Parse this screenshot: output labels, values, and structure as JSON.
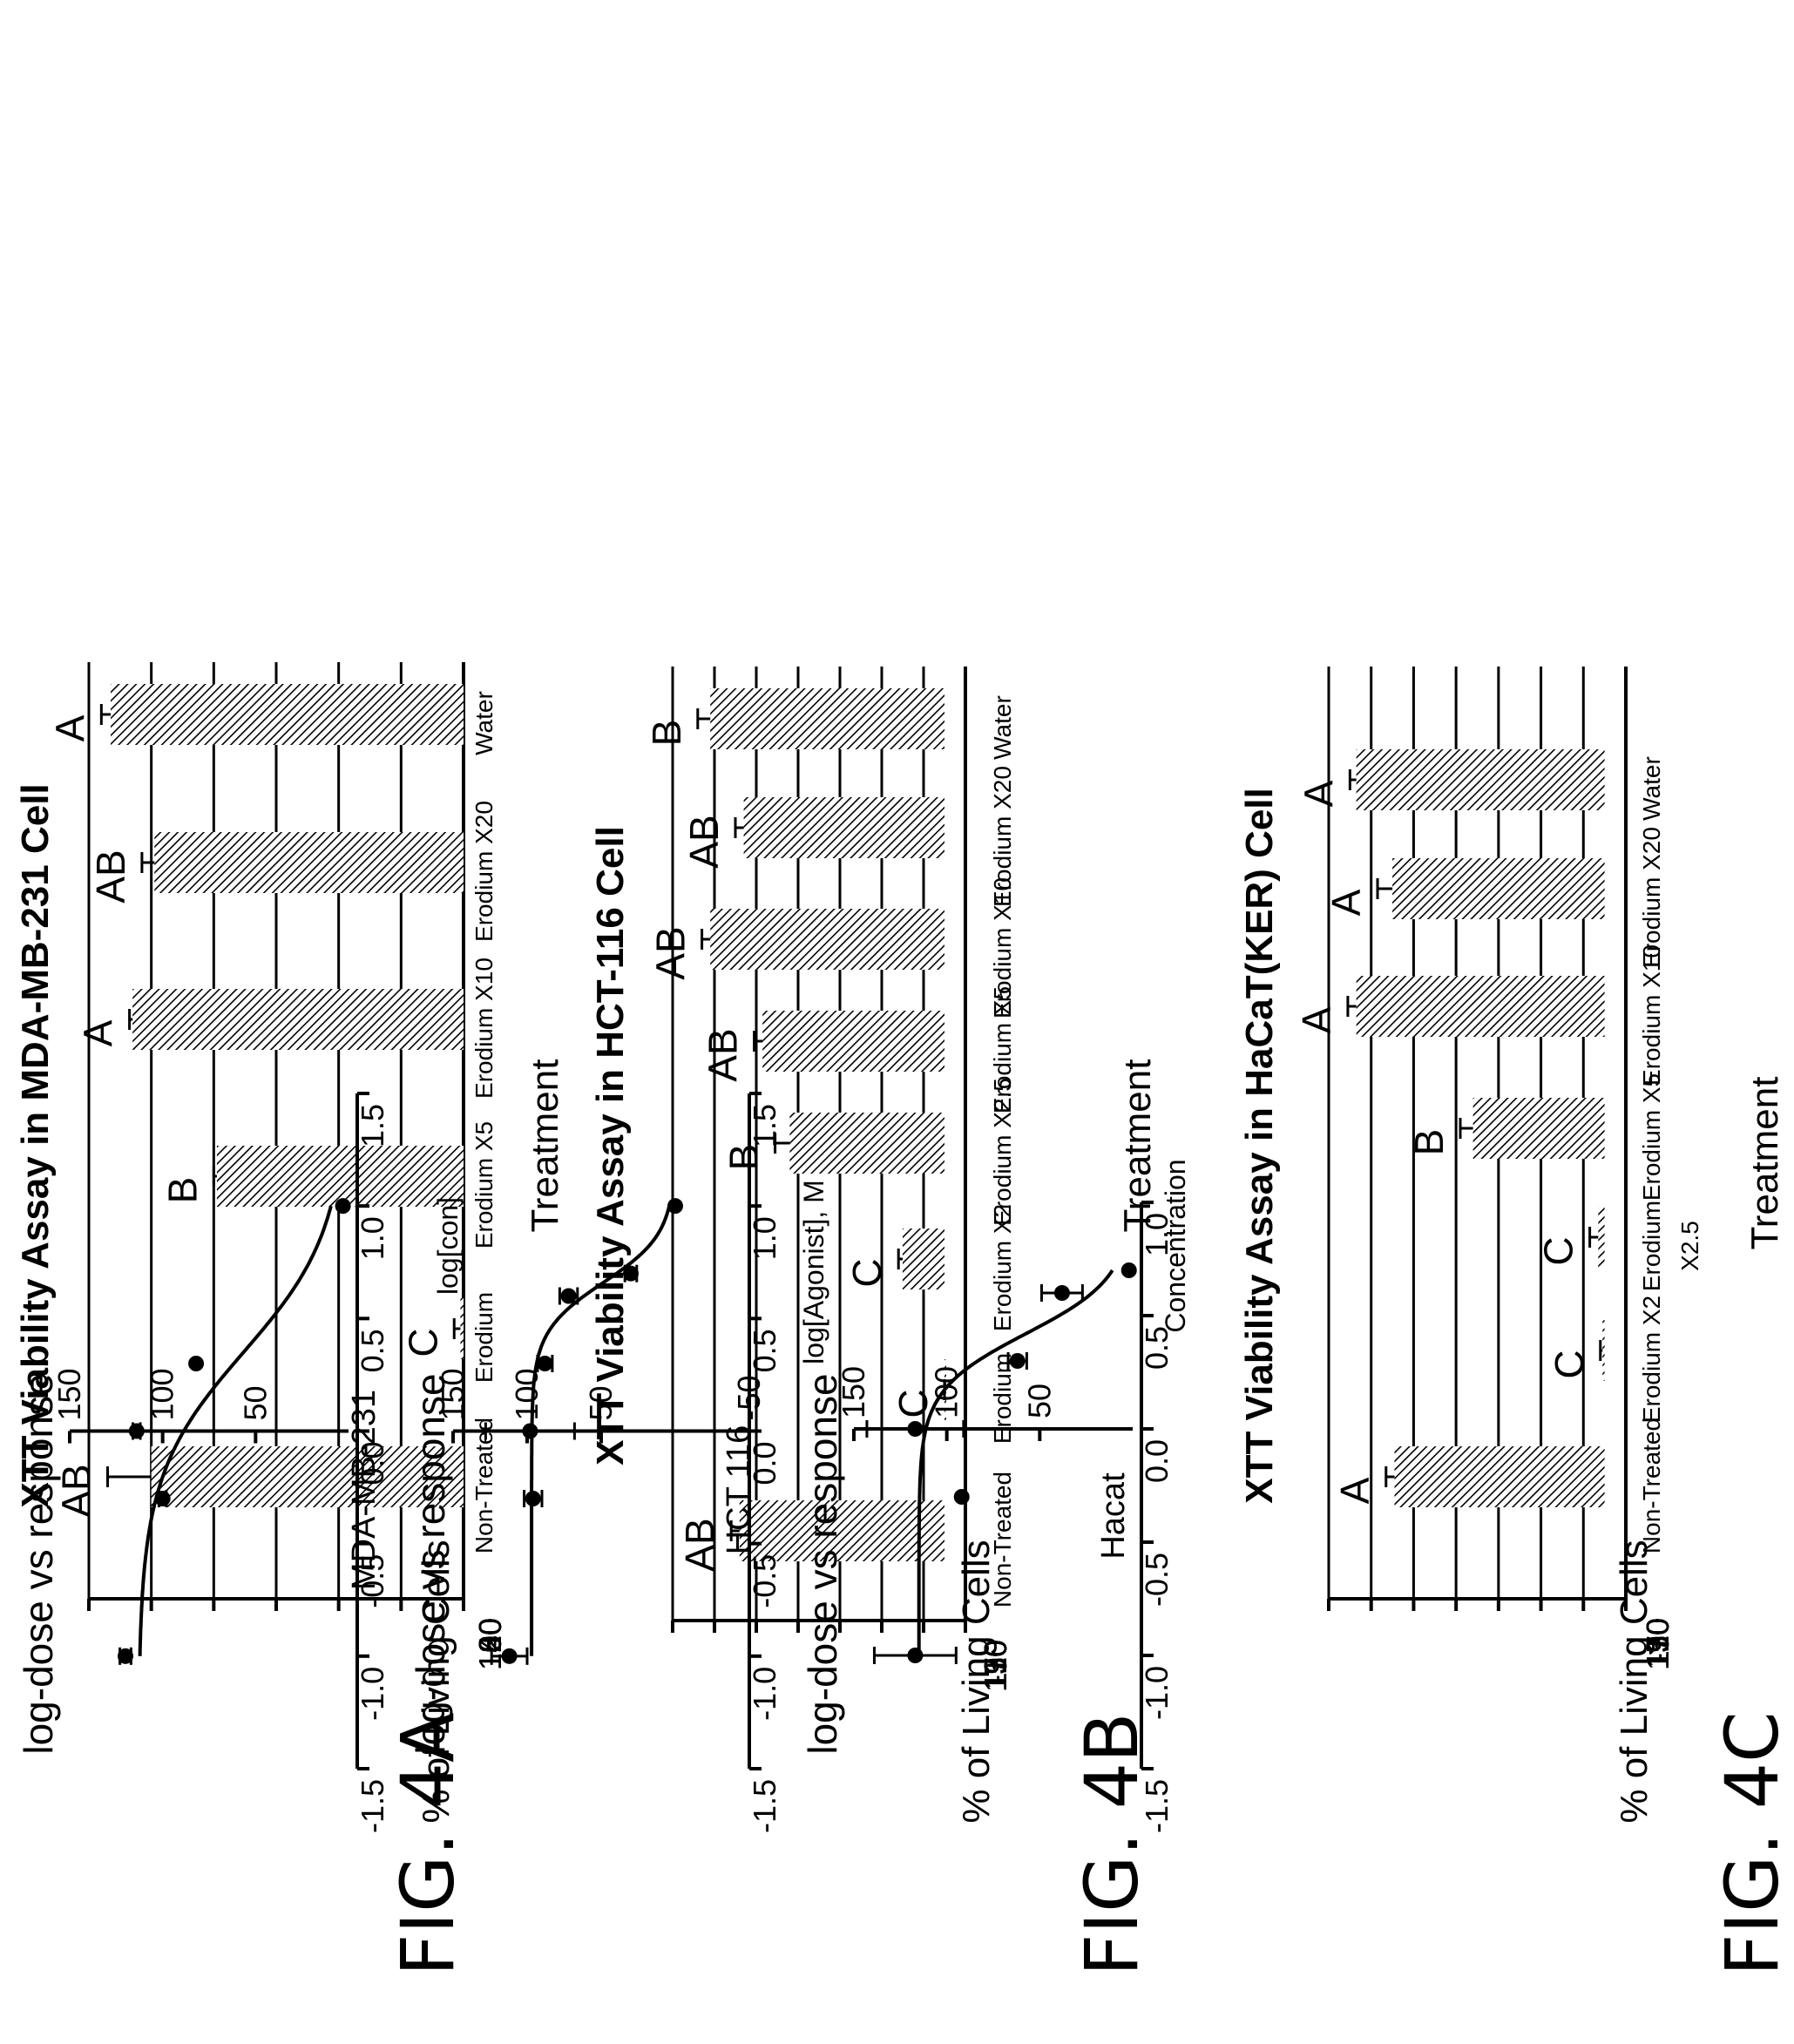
{
  "figure_labels": [
    "FIG. 4A",
    "FIG. 4B",
    "FIG. 4C"
  ],
  "colors": {
    "ink": "#000000",
    "bar_hatch": "#000000",
    "background": "#ffffff"
  },
  "chart_data": [
    {
      "id": "4A-bar",
      "type": "bar",
      "title": "XTT Viability Assay in MDA-MB-231 Cell",
      "xlabel": "Treatment",
      "ylabel": "% of Living Cells",
      "categories": [
        "Non-Treated",
        "Erodium",
        "Erodium X5",
        "Erodium X10",
        "Erodium X20",
        "Water"
      ],
      "values": [
        100,
        1,
        79,
        106,
        99,
        113
      ],
      "errors": [
        14,
        2,
        1,
        1,
        4,
        3
      ],
      "letters": [
        "AB",
        "C",
        "B",
        "A",
        "AB",
        "A"
      ],
      "ylim": [
        0,
        120
      ],
      "yticks": [
        0,
        20,
        40,
        60,
        80,
        100,
        120
      ],
      "grid": true
    },
    {
      "id": "4B-bar",
      "type": "bar",
      "title": "XTT Viability Assay in HCT-116 Cell",
      "xlabel": "Treatment",
      "ylabel": "% of Living Cells",
      "categories": [
        "Non-Treated",
        "Erodium",
        "Erodium X2",
        "Erodium X2.5",
        "Erodium X5",
        "Erodium X10",
        "Erodium X20",
        "Water"
      ],
      "values": [
        98,
        0,
        20,
        74,
        87,
        112,
        96,
        112
      ],
      "errors": [
        4,
        0,
        2,
        7,
        4,
        4,
        4,
        6
      ],
      "letters": [
        "AB",
        "C",
        "C",
        "B",
        "AB",
        "AB",
        "AB",
        "B"
      ],
      "ylim": [
        -10,
        130
      ],
      "yticks": [
        -10,
        10,
        30,
        50,
        70,
        90,
        110,
        130
      ],
      "grid": true
    },
    {
      "id": "4C-bar",
      "type": "bar",
      "title": "XTT Viability Assay in HaCaT(KER) Cell",
      "xlabel": "Treatment",
      "ylabel": "% of Living Cells",
      "categories": [
        "Non-Treated",
        "Erodium X2",
        "Erodium X2.5",
        "Erodium X5",
        "Erodium X10",
        "Erodium X20",
        "Water"
      ],
      "category_labels": [
        "Non-Treated",
        "Erodium X2",
        "Erodium",
        "Erodium X5",
        "Erodium X10",
        "Erodium X20",
        "Water"
      ],
      "extra_label": "X2.5",
      "values": [
        99,
        1,
        3,
        62,
        117,
        100,
        117
      ],
      "errors": [
        4,
        1,
        4,
        6,
        4,
        7,
        3
      ],
      "letters": [
        "A",
        "C",
        "C",
        "B",
        "A",
        "A",
        "A"
      ],
      "ylim": [
        -10,
        130
      ],
      "yticks": [
        -10,
        10,
        30,
        50,
        70,
        90,
        110,
        130
      ],
      "grid": true
    },
    {
      "id": "4A-dose",
      "type": "scatter",
      "title": "log-dose vs response",
      "xlabel": "log[con]",
      "cell_line": "MDA-MB-231",
      "xlim": [
        -1.5,
        1.5
      ],
      "ylim": [
        0,
        150
      ],
      "xticks": [
        -1.5,
        -1.0,
        -0.5,
        0.0,
        0.5,
        1.0,
        1.5
      ],
      "xtick_labels": [
        "-1.5",
        "-1.0",
        "-0.5",
        "0.0",
        "0.5",
        "1.0",
        "1.5"
      ],
      "yticks": [
        50,
        100,
        150
      ],
      "ytick_labels": [
        "50",
        "100",
        "150"
      ],
      "x": [
        -1.0,
        -0.3,
        0.0,
        0.3,
        1.0
      ],
      "y": [
        120,
        100,
        114,
        82,
        3
      ],
      "err": [
        3,
        2,
        2,
        1,
        1
      ],
      "fit": {
        "top": 113,
        "bottom": 0,
        "logEC50": 0.35,
        "hill": -1.6
      }
    },
    {
      "id": "4B-dose",
      "type": "scatter",
      "title": "log-dose vs response",
      "xlabel": "log[Agonist], M",
      "cell_line": "HCT 116",
      "xlim": [
        -1.5,
        1.5
      ],
      "ylim": [
        -50,
        150
      ],
      "xticks": [
        -1.5,
        -1.0,
        -0.5,
        0.0,
        0.5,
        1.0,
        1.5
      ],
      "xtick_labels": [
        "-1.5",
        "-1.0",
        "-0.5",
        "0.0",
        "0.5",
        "1.0",
        "1.5"
      ],
      "yticks": [
        -50,
        50,
        100,
        150
      ],
      "ytick_labels": [
        "-50",
        "50",
        "100",
        "150"
      ],
      "x": [
        -1.0,
        -0.3,
        0.0,
        0.3,
        0.6,
        0.7,
        1.0
      ],
      "y": [
        112,
        96,
        98,
        88,
        72,
        30,
        0
      ],
      "err": [
        12,
        6,
        30,
        5,
        6,
        4,
        1
      ],
      "fit": {
        "top": 97,
        "bottom": 0,
        "logEC50": 0.66,
        "hill": -4.0
      }
    },
    {
      "id": "4C-dose",
      "type": "scatter",
      "title": "log-dose vs response",
      "xlabel": "Concentration",
      "cell_line": "Hacat",
      "xlim": [
        -1.5,
        1.0
      ],
      "ylim": [
        0,
        150
      ],
      "xticks": [
        -1.5,
        -1.0,
        -0.5,
        0.0,
        0.5,
        1.0
      ],
      "xtick_labels": [
        "-1.5",
        "-1.0",
        "-0.5",
        "0.0",
        "0.5",
        "1.0"
      ],
      "yticks": [
        50,
        100,
        150
      ],
      "ytick_labels": [
        "50",
        "100",
        "150"
      ],
      "x": [
        -1.0,
        -0.3,
        0.0,
        0.3,
        0.6,
        0.7
      ],
      "y": [
        117,
        92,
        117,
        62,
        38,
        2
      ],
      "err": [
        22,
        1,
        26,
        5,
        11,
        1
      ],
      "fit": {
        "top": 115,
        "bottom": 0,
        "logEC50": 0.42,
        "hill": -3.5
      }
    }
  ]
}
